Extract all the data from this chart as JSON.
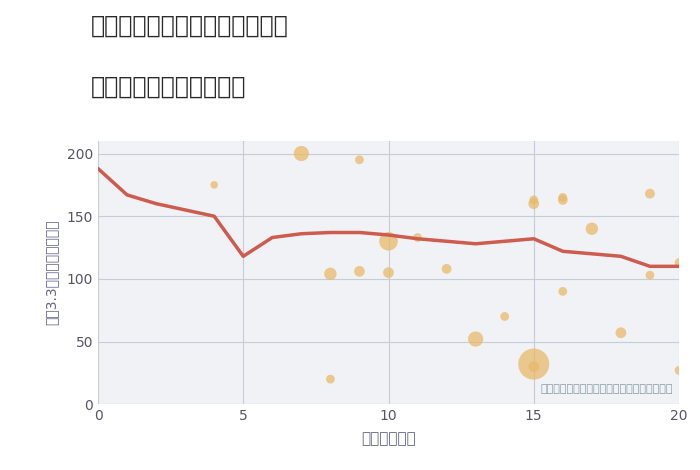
{
  "title_line1": "神奈川県相模原市緑区二本松の",
  "title_line2": "駅距離別中古戸建て価格",
  "xlabel": "駅距離（分）",
  "ylabel": "坪（3.3㎡）単価（万円）",
  "xlim": [
    0,
    20
  ],
  "ylim": [
    0,
    210
  ],
  "yticks": [
    0,
    50,
    100,
    150,
    200
  ],
  "xticks": [
    0,
    5,
    10,
    15,
    20
  ],
  "line_x": [
    0,
    1,
    2,
    3,
    4,
    5,
    6,
    7,
    8,
    9,
    10,
    11,
    12,
    13,
    14,
    15,
    16,
    17,
    18,
    19,
    20
  ],
  "line_y": [
    188,
    167,
    160,
    155,
    150,
    118,
    133,
    136,
    137,
    137,
    135,
    132,
    130,
    128,
    130,
    132,
    122,
    120,
    118,
    110,
    110
  ],
  "line_color": "#cd5c4e",
  "line_width": 2.5,
  "bubble_x": [
    4,
    7,
    8,
    8,
    9,
    9,
    10,
    10,
    11,
    12,
    13,
    14,
    15,
    15,
    15,
    15,
    16,
    16,
    16,
    17,
    18,
    19,
    19,
    20,
    20
  ],
  "bubble_y": [
    175,
    200,
    104,
    20,
    195,
    106,
    130,
    105,
    133,
    108,
    52,
    70,
    160,
    163,
    30,
    32,
    163,
    165,
    90,
    140,
    57,
    103,
    168,
    113,
    27
  ],
  "bubble_size": [
    30,
    120,
    80,
    40,
    40,
    60,
    180,
    60,
    40,
    50,
    120,
    40,
    60,
    40,
    60,
    500,
    50,
    40,
    40,
    80,
    60,
    40,
    50,
    40,
    40
  ],
  "bubble_color": "#e8b96a",
  "bubble_alpha": 0.75,
  "annotation": "円の大きさは、取引のあった物件面積を示す",
  "annotation_color": "#8899aa",
  "background_color": "#f0f2f5",
  "grid_color": "#c5cdd8",
  "title_color": "#2a2a2a",
  "label_color": "#666688",
  "tick_color": "#555566"
}
